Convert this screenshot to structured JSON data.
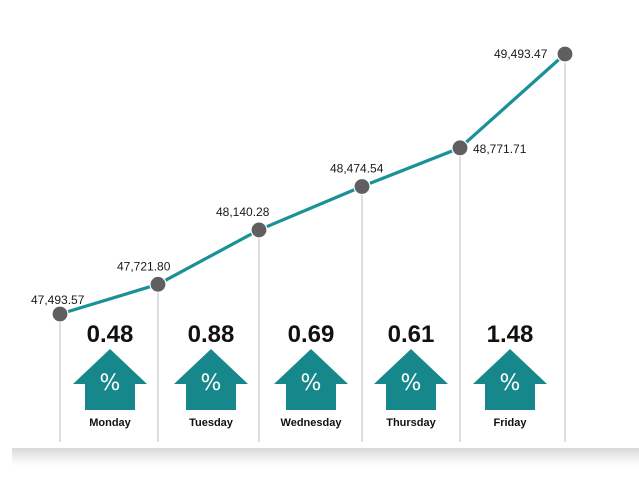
{
  "colors": {
    "line": "#1a9196",
    "marker": "#5f5f62",
    "arrow": "#16888c",
    "drop_line": "#bdbdbd"
  },
  "chart_data": {
    "type": "line",
    "title": "",
    "xlabel": "",
    "ylabel": "",
    "grid": false,
    "ylim": [
      47493.57,
      49493.47
    ],
    "points": [
      {
        "label": "47,493.57",
        "value": 47493.57
      },
      {
        "label": "47,721.80",
        "value": 47721.8
      },
      {
        "label": "48,140.28",
        "value": 48140.28
      },
      {
        "label": "48,474.54",
        "value": 48474.54
      },
      {
        "label": "48,771.71",
        "value": 48771.71
      },
      {
        "label": "49,493.47",
        "value": 49493.47
      }
    ],
    "days": [
      {
        "day": "Monday",
        "change": "0.48",
        "symbol": "%",
        "direction": "up"
      },
      {
        "day": "Tuesday",
        "change": "0.88",
        "symbol": "%",
        "direction": "up"
      },
      {
        "day": "Wednesday",
        "change": "0.69",
        "symbol": "%",
        "direction": "up"
      },
      {
        "day": "Thursday",
        "change": "0.61",
        "symbol": "%",
        "direction": "up"
      },
      {
        "day": "Friday",
        "change": "1.48",
        "symbol": "%",
        "direction": "up"
      }
    ]
  }
}
